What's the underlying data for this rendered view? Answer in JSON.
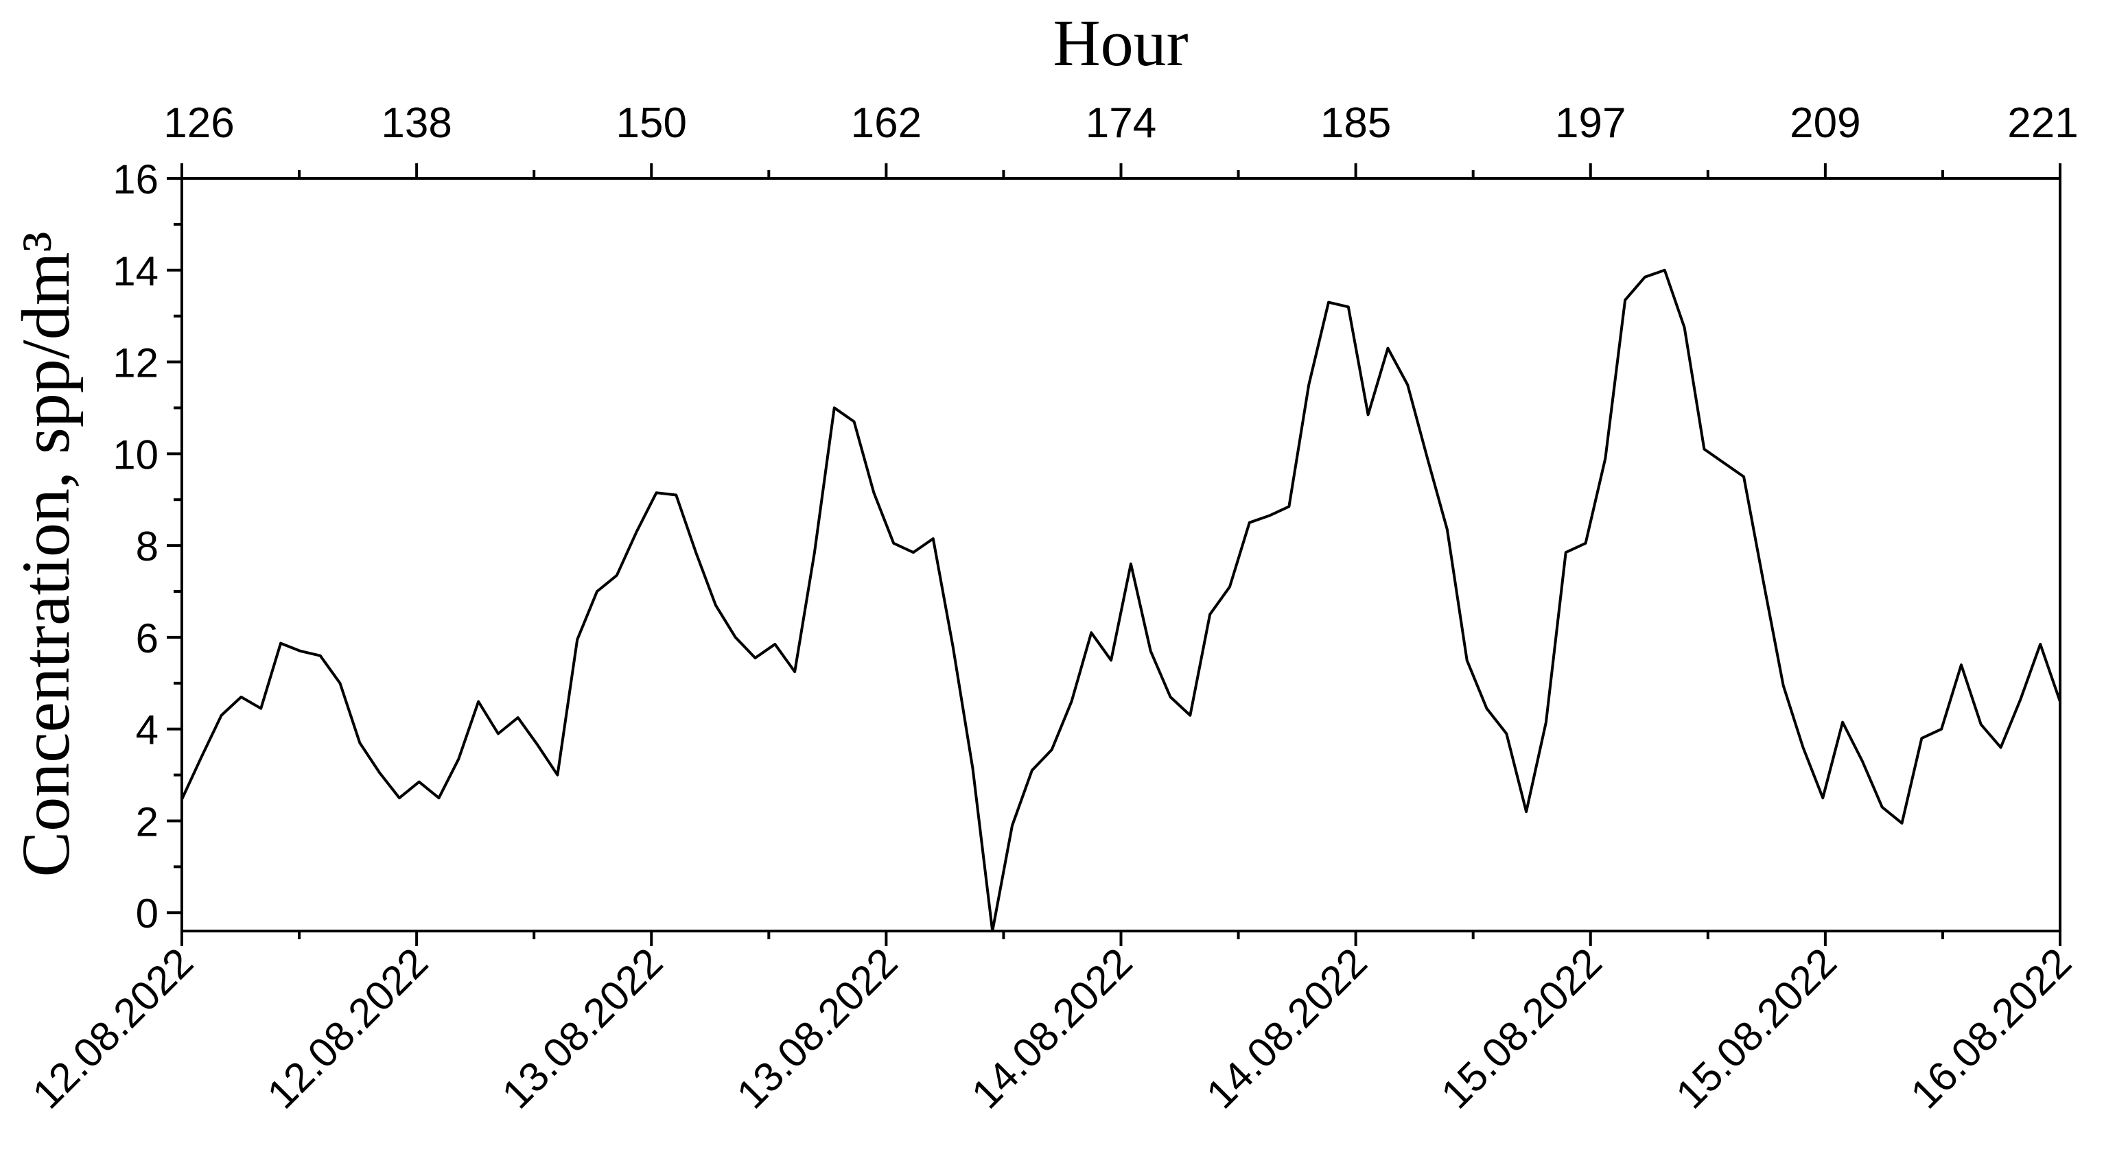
{
  "chart_data": {
    "type": "line",
    "title": "Hour",
    "ylabel": "Concentration, spp/dm³",
    "xlim": [
      126,
      221
    ],
    "xticks": [
      126,
      {
        "value": 137.875,
        "label": "138"
      },
      {
        "value": 149.75,
        "label": "150"
      },
      {
        "value": 161.625,
        "label": "162"
      },
      {
        "value": 173.5,
        "label": "174"
      },
      {
        "value": 185.375,
        "label": "185"
      },
      {
        "value": 197.25,
        "label": "197"
      },
      {
        "value": 209.125,
        "label": "209"
      },
      221
    ],
    "x2ticks": [
      {
        "value": 126,
        "label": "12.08.2022"
      },
      {
        "value": 137.875,
        "label": "12.08.2022"
      },
      {
        "value": 149.75,
        "label": "13.08.2022"
      },
      {
        "value": 161.625,
        "label": "13.08.2022"
      },
      {
        "value": 173.5,
        "label": "14.08.2022"
      },
      {
        "value": 185.375,
        "label": "14.08.2022"
      },
      {
        "value": 197.25,
        "label": "15.08.2022"
      },
      {
        "value": 209.125,
        "label": "15.08.2022"
      },
      {
        "value": 221,
        "label": "16.08.2022"
      }
    ],
    "ylim": [
      -0.4,
      16
    ],
    "yticks": [
      0,
      2,
      4,
      6,
      8,
      10,
      12,
      14,
      16
    ],
    "grid": false,
    "series": [
      {
        "color": "#000000",
        "x": [
          126,
          127,
          128,
          129,
          130,
          131,
          132,
          133,
          134,
          135,
          136,
          137,
          138,
          139,
          140,
          141,
          142,
          143,
          144,
          145,
          146,
          147,
          148,
          149,
          150,
          151,
          152,
          153,
          154,
          155,
          156,
          157,
          158,
          159,
          160,
          161,
          162,
          163,
          164,
          165,
          166,
          167,
          168,
          169,
          170,
          171,
          172,
          173,
          174,
          175,
          176,
          177,
          178,
          179,
          180,
          181,
          182,
          183,
          184,
          185,
          186,
          187,
          188,
          189,
          190,
          191,
          192,
          193,
          194,
          195,
          196,
          197,
          198,
          199,
          200,
          201,
          202,
          203,
          204,
          205,
          206,
          207,
          208,
          209,
          210,
          211,
          212,
          213,
          214,
          215,
          216,
          217,
          218,
          219,
          220,
          221
        ],
        "values": [
          2.47,
          3.4,
          4.3,
          4.7,
          4.45,
          5.87,
          5.7,
          5.6,
          5.0,
          3.7,
          3.05,
          2.5,
          2.85,
          2.5,
          3.35,
          4.6,
          3.9,
          4.25,
          3.65,
          3.0,
          5.95,
          7.0,
          7.35,
          8.3,
          9.15,
          9.1,
          7.85,
          6.7,
          6.0,
          5.55,
          5.85,
          5.25,
          7.85,
          11.0,
          10.7,
          9.15,
          8.05,
          7.85,
          8.15,
          5.8,
          3.15,
          -0.4,
          1.9,
          3.1,
          3.55,
          4.6,
          6.1,
          5.5,
          7.6,
          5.7,
          4.7,
          4.3,
          6.5,
          7.1,
          8.5,
          8.65,
          8.85,
          11.5,
          13.3,
          13.2,
          10.85,
          12.3,
          11.5,
          9.9,
          8.35,
          5.5,
          4.45,
          3.9,
          2.2,
          4.15,
          7.85,
          8.05,
          9.9,
          13.35,
          13.85,
          14.0,
          12.75,
          10.1,
          9.8,
          9.5,
          7.2,
          4.95,
          3.6,
          2.5,
          4.15,
          3.3,
          2.3,
          1.95,
          3.8,
          4.0,
          5.4,
          4.1,
          3.6,
          4.65,
          5.85,
          4.6
        ]
      }
    ]
  }
}
